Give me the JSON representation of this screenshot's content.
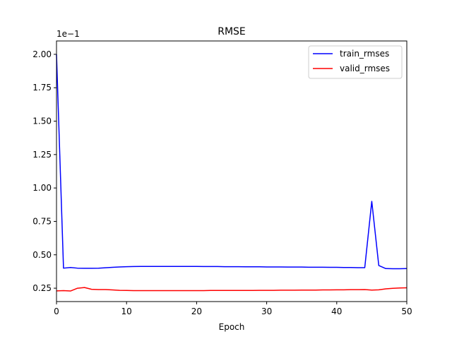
{
  "chart_data": {
    "type": "line",
    "title": "RMSE",
    "xlabel": "Epoch",
    "ylabel": "",
    "y_offset_label": "1e−1",
    "xlim": [
      0,
      50
    ],
    "ylim": [
      0.15,
      2.1
    ],
    "xticks": [
      0,
      10,
      20,
      30,
      40,
      50
    ],
    "xtick_labels": [
      "0",
      "10",
      "20",
      "30",
      "40",
      "50"
    ],
    "yticks": [
      0.25,
      0.5,
      0.75,
      1.0,
      1.25,
      1.5,
      1.75,
      2.0
    ],
    "ytick_labels": [
      "0.25",
      "0.50",
      "0.75",
      "1.00",
      "1.25",
      "1.50",
      "1.75",
      "2.00"
    ],
    "grid": false,
    "legend_position": "top-right",
    "series": [
      {
        "name": "train_rmses",
        "color": "#0000ff",
        "x": [
          0,
          1,
          2,
          3,
          4,
          5,
          6,
          7,
          8,
          9,
          10,
          11,
          12,
          13,
          14,
          15,
          16,
          17,
          18,
          19,
          20,
          21,
          22,
          23,
          24,
          25,
          26,
          27,
          28,
          29,
          30,
          31,
          32,
          33,
          34,
          35,
          36,
          37,
          38,
          39,
          40,
          41,
          42,
          43,
          44,
          45,
          46,
          47,
          48,
          49,
          50
        ],
        "values": [
          2.0,
          0.4,
          0.405,
          0.4,
          0.399,
          0.399,
          0.4,
          0.403,
          0.406,
          0.409,
          0.411,
          0.412,
          0.413,
          0.413,
          0.413,
          0.413,
          0.413,
          0.413,
          0.413,
          0.413,
          0.413,
          0.412,
          0.412,
          0.412,
          0.411,
          0.411,
          0.411,
          0.41,
          0.41,
          0.41,
          0.409,
          0.409,
          0.409,
          0.408,
          0.408,
          0.408,
          0.407,
          0.407,
          0.407,
          0.406,
          0.406,
          0.405,
          0.405,
          0.404,
          0.404,
          0.9,
          0.42,
          0.397,
          0.396,
          0.396,
          0.397
        ]
      },
      {
        "name": "valid_rmses",
        "color": "#ff0000",
        "x": [
          0,
          1,
          2,
          3,
          4,
          5,
          6,
          7,
          8,
          9,
          10,
          11,
          12,
          13,
          14,
          15,
          16,
          17,
          18,
          19,
          20,
          21,
          22,
          23,
          24,
          25,
          26,
          27,
          28,
          29,
          30,
          31,
          32,
          33,
          34,
          35,
          36,
          37,
          38,
          39,
          40,
          41,
          42,
          43,
          44,
          45,
          46,
          47,
          48,
          49,
          50
        ],
        "values": [
          0.23,
          0.232,
          0.229,
          0.25,
          0.255,
          0.242,
          0.24,
          0.24,
          0.237,
          0.234,
          0.233,
          0.232,
          0.232,
          0.232,
          0.232,
          0.232,
          0.232,
          0.232,
          0.232,
          0.232,
          0.232,
          0.232,
          0.233,
          0.233,
          0.233,
          0.233,
          0.233,
          0.233,
          0.233,
          0.234,
          0.234,
          0.234,
          0.235,
          0.235,
          0.235,
          0.236,
          0.236,
          0.236,
          0.237,
          0.237,
          0.238,
          0.238,
          0.239,
          0.239,
          0.24,
          0.236,
          0.238,
          0.245,
          0.249,
          0.252,
          0.253
        ]
      }
    ]
  }
}
